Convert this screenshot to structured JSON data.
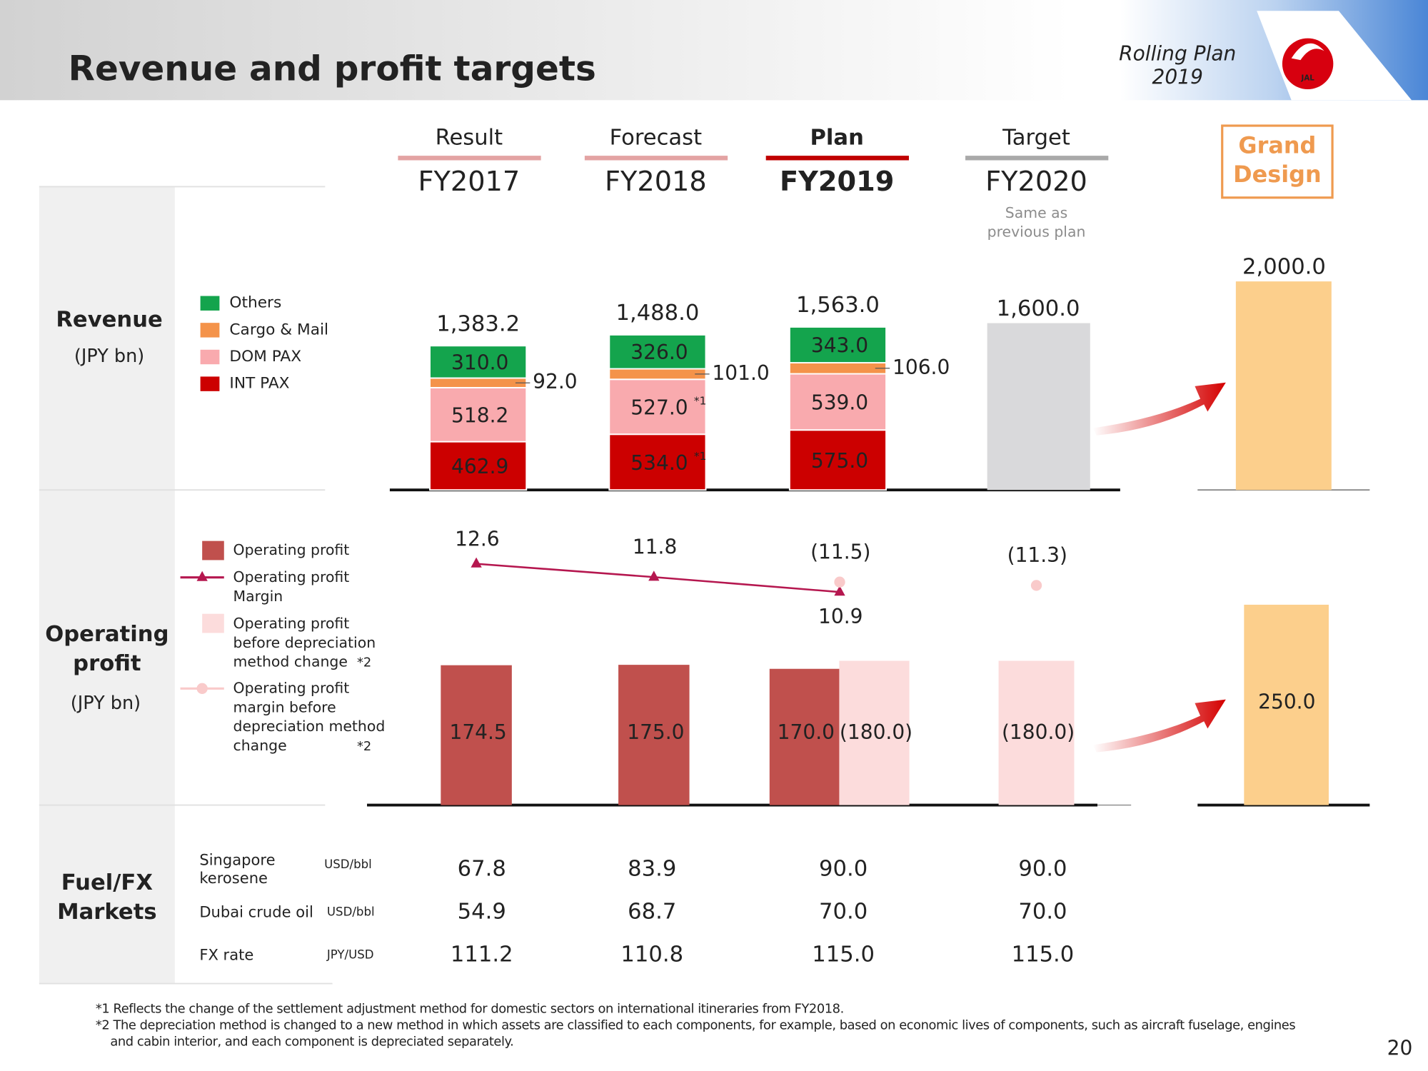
{
  "header": {
    "title": "Revenue and profit targets",
    "badge": [
      "Rolling Plan",
      "2019"
    ],
    "logo": "JAL"
  },
  "columns": [
    {
      "label": "Result",
      "year": "FY2017",
      "color": "#d98484"
    },
    {
      "label": "Forecast",
      "year": "FY2018",
      "color": "#d98484"
    },
    {
      "label": "Plan",
      "year": "FY2019",
      "color": "#c00000"
    },
    {
      "label": "Target",
      "year": "FY2020",
      "color": "#8c8c8c",
      "note": "Same as previous plan"
    }
  ],
  "grand_design": {
    "label": "Grand Design",
    "color": "#ef9a4f"
  },
  "sections": {
    "revenue": [
      "Revenue",
      "(JPY bn)"
    ],
    "operating_profit": [
      "Operating profit",
      "(JPY bn)"
    ],
    "fuel_fx": "Fuel/FX Markets"
  },
  "chart_data": [
    {
      "type": "stacked_bar",
      "ylim": [
        0,
        2000
      ],
      "series": [
        {
          "name": "INT PAX",
          "color": "#cc0000",
          "text_color": "#ffffff",
          "values": [
            462.9,
            534.0,
            575.0
          ],
          "value_labels": [
            "462.9",
            "534.0",
            "575.0"
          ],
          "value_notes": [
            null,
            "*1",
            null
          ]
        },
        {
          "name": "DOM PAX",
          "color": "#f9aaae",
          "text_color": "#222222",
          "values": [
            518.2,
            527.0,
            539.0
          ],
          "value_labels": [
            "518.2",
            "527.0",
            "539.0"
          ],
          "value_notes": [
            null,
            "*1",
            null
          ]
        },
        {
          "name": "Cargo & Mail",
          "color": "#f4934a",
          "text_color": "#222222",
          "label_position": "right",
          "values": [
            92.0,
            101.0,
            106.0
          ],
          "value_labels": [
            "92.0",
            "101.0",
            "106.0"
          ]
        },
        {
          "name": "Others",
          "color": "#14a44d",
          "text_color": "#ffffff",
          "values": [
            310.0,
            326.0,
            343.0
          ],
          "value_labels": [
            "310.0",
            "326.0",
            "343.0"
          ]
        }
      ],
      "totals": {
        "values": [
          1383.2,
          1488.0,
          1563.0
        ],
        "value_labels": [
          "1,383.2",
          "1,488.0",
          "1,563.0"
        ]
      },
      "target": {
        "value": 1600,
        "value_label": "1,600.0",
        "color": "#d9d9db"
      },
      "grand_design": {
        "value": 2000,
        "value_label": "2,000.0",
        "color": "#fccf8c"
      }
    },
    {
      "type": "bar_line",
      "ylim": [
        0,
        300
      ],
      "y2lim": [
        8,
        14
      ],
      "series": [
        {
          "name": "Operating profit",
          "type": "bar",
          "color": "#c0504d",
          "text_color": "#f6c4c4",
          "values": [
            174.5,
            175.0,
            170.0,
            null
          ],
          "value_labels": [
            "174.5",
            "175.0",
            "170.0",
            null
          ]
        },
        {
          "name": "Operating profit Margin",
          "type": "line",
          "axis": "y2",
          "marker": "triangle",
          "color": "#b5174f",
          "values": [
            12.6,
            11.8,
            10.9,
            null
          ]
        },
        {
          "name": "Operating profit before depreciation method change",
          "note": "*2",
          "type": "bar",
          "color": "#fcdcdc",
          "text_color": "#222222",
          "values": [
            null,
            null,
            180.0,
            180.0
          ],
          "value_labels": [
            null,
            null,
            "(180.0)",
            "(180.0)"
          ]
        },
        {
          "name": "Operating profit margin before depreciation method change",
          "note": "*2",
          "type": "line",
          "axis": "y2",
          "marker": "circle",
          "connect": false,
          "color": "#f9caca",
          "values": [
            null,
            null,
            11.5,
            11.3
          ],
          "value_labels": [
            null,
            null,
            "(11.5)",
            "(11.3)"
          ]
        }
      ],
      "grand_design": {
        "value": 250,
        "value_label": "250.0",
        "color": "#fccf8c"
      }
    }
  ],
  "fuel_table": {
    "rows": [
      [
        "Singapore kerosene",
        "USD/bbl",
        "67.8",
        "83.9",
        "90.0",
        "90.0"
      ],
      [
        "Dubai crude oil",
        "USD/bbl",
        "54.9",
        "68.7",
        "70.0",
        "70.0"
      ],
      [
        "FX rate",
        "JPY/USD",
        "111.2",
        "110.8",
        "115.0",
        "115.0"
      ]
    ]
  },
  "footnotes": [
    "*1 Reflects the change of the settlement adjustment method for domestic sectors on international itineraries from FY2018.",
    "*2 The depreciation method is changed to a new method in which assets are classified to each components, for example, based on economic lives of components, such as aircraft fuselage, engines and cabin interior, and each component is depreciated separately."
  ],
  "page_number": "20"
}
